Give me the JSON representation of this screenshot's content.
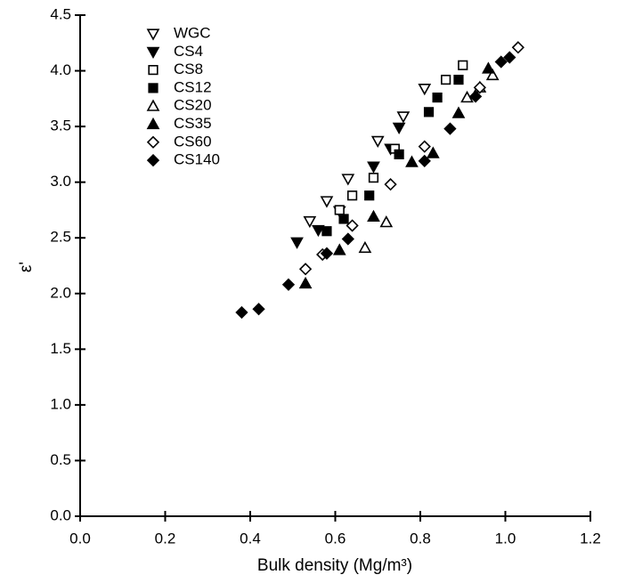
{
  "chart_data": {
    "type": "scatter",
    "xlabel": "Bulk density (Mg/m³)",
    "ylabel": "ε'",
    "xlim": [
      0,
      1.2
    ],
    "ylim": [
      0,
      4.5
    ],
    "xticks": [
      {
        "value": 0,
        "label": "0.0"
      },
      0.2,
      0.4,
      0.6,
      0.8,
      {
        "value": 1,
        "label": "1.0"
      },
      1.2
    ],
    "yticks": [
      {
        "value": 0,
        "label": "0.0"
      },
      0.5,
      {
        "value": 1,
        "label": "1.0"
      },
      1.5,
      {
        "value": 2,
        "label": "2.0"
      },
      2.5,
      {
        "value": 3,
        "label": "3.0"
      },
      3.5,
      {
        "value": 4,
        "label": "4.0"
      },
      4.5
    ],
    "legend": "upper left",
    "series": [
      {
        "name": "WGC",
        "color": "#000000",
        "marker": "triangle-down",
        "filled": false,
        "x": [
          0.54,
          0.58,
          0.63,
          0.7,
          0.76,
          0.81
        ],
        "y": [
          2.65,
          2.83,
          3.03,
          3.37,
          3.59,
          3.84
        ]
      },
      {
        "name": "CS4",
        "color": "#000000",
        "marker": "triangle-down",
        "filled": true,
        "x": [
          0.51,
          0.56,
          0.61,
          0.69,
          0.73,
          0.75
        ],
        "y": [
          2.46,
          2.57,
          2.74,
          3.14,
          3.3,
          3.49
        ]
      },
      {
        "name": "CS8",
        "color": "#000000",
        "marker": "square",
        "filled": false,
        "x": [
          0.61,
          0.64,
          0.69,
          0.74,
          0.86,
          0.9
        ],
        "y": [
          2.75,
          2.88,
          3.04,
          3.3,
          3.92,
          4.05
        ]
      },
      {
        "name": "CS12",
        "color": "#000000",
        "marker": "square",
        "filled": true,
        "x": [
          0.58,
          0.62,
          0.68,
          0.75,
          0.82,
          0.84,
          0.89
        ],
        "y": [
          2.56,
          2.67,
          2.88,
          3.25,
          3.63,
          3.76,
          3.92
        ]
      },
      {
        "name": "CS20",
        "color": "#000000",
        "marker": "triangle-up",
        "filled": false,
        "x": [
          0.67,
          0.72,
          0.91,
          0.94,
          0.97
        ],
        "y": [
          2.41,
          2.64,
          3.76,
          3.85,
          3.96
        ]
      },
      {
        "name": "CS35",
        "color": "#000000",
        "marker": "triangle-up",
        "filled": true,
        "x": [
          0.53,
          0.61,
          0.69,
          0.78,
          0.83,
          0.89,
          0.96
        ],
        "y": [
          2.09,
          2.39,
          2.69,
          3.18,
          3.26,
          3.62,
          4.02
        ]
      },
      {
        "name": "CS60",
        "color": "#000000",
        "marker": "diamond",
        "filled": false,
        "x": [
          0.53,
          0.57,
          0.64,
          0.73,
          0.81,
          0.94,
          1.03
        ],
        "y": [
          2.22,
          2.35,
          2.61,
          2.98,
          3.32,
          3.85,
          4.21
        ]
      },
      {
        "name": "CS140",
        "color": "#000000",
        "marker": "diamond",
        "filled": true,
        "x": [
          0.38,
          0.42,
          0.49,
          0.58,
          0.63,
          0.81,
          0.87,
          0.93,
          0.99,
          1.01
        ],
        "y": [
          1.83,
          1.86,
          2.08,
          2.36,
          2.49,
          3.19,
          3.48,
          3.77,
          4.08,
          4.12
        ]
      }
    ]
  }
}
